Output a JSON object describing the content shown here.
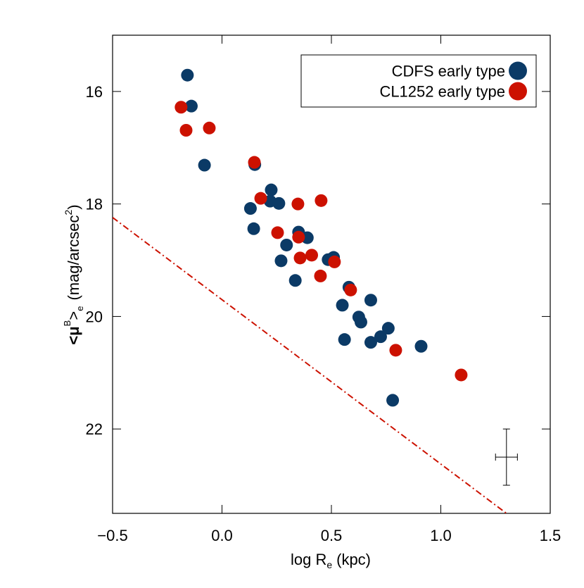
{
  "chart_data": {
    "type": "scatter",
    "xlabel": {
      "text": "log R",
      "sub": "e",
      "unit": "(kpc)"
    },
    "ylabel": {
      "pre": "<μ",
      "sup": "B",
      "mid": ">",
      "sub": "e",
      "unit": "(mag/arcsec",
      "unit_sup": "2",
      "end": ")"
    },
    "xlim": [
      -0.5,
      1.5
    ],
    "xticks": [
      {
        "value": -0.5,
        "label": "−0.5"
      },
      {
        "value": 0,
        "label": "0.0"
      },
      0.5,
      {
        "value": 1,
        "label": "1.0"
      },
      1.5
    ],
    "ylim": [
      23.5,
      15
    ],
    "yticks": [
      16,
      18,
      20,
      22
    ],
    "legend": "upper right",
    "series": [
      {
        "name": "CDFS early type",
        "color": "#0b3a66",
        "x": [
          -0.158,
          -0.14,
          -0.08,
          0.15,
          0.225,
          0.13,
          0.22,
          0.26,
          0.145,
          0.35,
          0.39,
          0.295,
          0.27,
          0.51,
          0.485,
          0.335,
          0.58,
          0.55,
          0.68,
          0.625,
          0.635,
          0.76,
          0.725,
          0.56,
          0.68,
          0.91,
          0.78
        ],
        "values": [
          15.71,
          16.26,
          17.31,
          17.3,
          17.75,
          18.08,
          17.95,
          17.99,
          18.44,
          18.5,
          18.6,
          18.73,
          19.01,
          18.95,
          18.99,
          19.36,
          19.48,
          19.8,
          19.71,
          20.01,
          20.1,
          20.21,
          20.36,
          20.41,
          20.46,
          20.53,
          21.49
        ]
      },
      {
        "name": "CL1252 early type",
        "color": "#cc1100",
        "x": [
          -0.187,
          -0.164,
          -0.058,
          0.148,
          0.177,
          0.453,
          0.347,
          0.254,
          0.35,
          0.357,
          0.41,
          0.514,
          0.45,
          0.588,
          0.794,
          1.093
        ],
        "values": [
          16.28,
          16.69,
          16.65,
          17.26,
          17.9,
          17.94,
          18.0,
          18.51,
          18.59,
          18.96,
          18.91,
          19.03,
          19.28,
          19.53,
          20.6,
          21.04
        ]
      }
    ],
    "reference_line": {
      "color": "#cc1100",
      "x": [
        -0.5,
        1.3
      ],
      "y": [
        18.24,
        23.5
      ]
    },
    "error_bar": {
      "x": 1.3,
      "y": 22.5,
      "xerr": 0.05,
      "yerr": 0.5
    }
  }
}
